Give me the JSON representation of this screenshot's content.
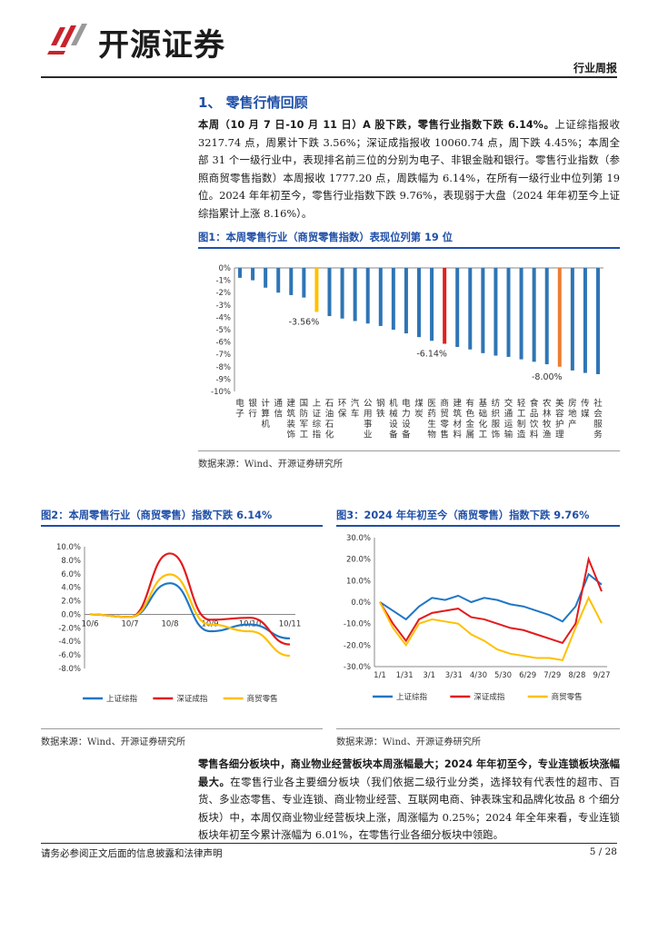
{
  "header": {
    "brand": "开源证券",
    "report_type": "行业周报"
  },
  "section_title": "1、 零售行情回顾",
  "para1": {
    "lead": "本周（10 月 7 日-10 月 11 日）A 股下跌，零售行业指数下跌 6.14%。",
    "rest": "上证综指报收 3217.74 点，周累计下跌 3.56%；深证成指报收 10060.74 点，周下跌 4.45%；本周全部 31 个一级行业中，表现排名前三位的分别为电子、非银金融和银行。零售行业指数（参照商贸零售指数）本周报收 1777.20 点，周跌幅为 6.14%，在所有一级行业中位列第 19 位。2024 年年初至今，零售行业指数下跌 9.76%，表现弱于大盘（2024 年年初至今上证综指累计上涨 8.16%）。"
  },
  "fig1": {
    "caption": "图1：本周零售行业（商贸零售指数）表现位列第 19 位",
    "source": "数据来源：Wind、开源证券研究所"
  },
  "fig2": {
    "caption": "图2：本周零售行业（商贸零售）指数下跌 6.14%",
    "source": "数据来源：Wind、开源证券研究所"
  },
  "fig3": {
    "caption": "图3：2024 年年初至今（商贸零售）指数下跌 9.76%",
    "source": "数据来源：Wind、开源证券研究所"
  },
  "para2": {
    "lead": "零售各细分板块中，商业物业经营板块本周涨幅最大；2024 年年初至今，专业连锁板块涨幅最大。",
    "rest": "在零售行业各主要细分板块（我们依据二级行业分类，选择较有代表性的超市、百货、多业态零售、专业连锁、商业物业经营、互联网电商、钟表珠宝和品牌化妆品 8 个细分板块）中，本周仅商业物业经营板块上涨，周涨幅为 0.25%；2024 年全年来看，专业连锁板块年初至今累计涨幅为 6.01%，在零售行业各细分板块中领跑。"
  },
  "footer": {
    "disclaimer": "请务必参阅正文后面的信息披露和法律声明",
    "page": "5 / 28"
  },
  "colors": {
    "accent": "#1f4fa8",
    "bar_default": "#2e75b6",
    "bar_highlight_yellow": "#ffc000",
    "bar_highlight_red": "#e02020",
    "bar_highlight_orange": "#ed7d31",
    "line_blue": "#1f77c4",
    "line_red": "#e31a1c",
    "line_yellow": "#ffc000"
  },
  "chart_data": [
    {
      "type": "bar",
      "categories": [
        "电子",
        "银行",
        "计算机",
        "通信",
        "建筑装饰",
        "国防军工",
        "上证综指",
        "石油石化",
        "环保",
        "汽车",
        "公用事业",
        "钢铁",
        "机械设备",
        "电力设备",
        "煤炭",
        "医药生物",
        "商贸零售",
        "建筑材料",
        "有色金属",
        "基础化工",
        "纺织服饰",
        "交通运输",
        "轻工制造",
        "食品饮料",
        "农林牧渔",
        "美容护理",
        "房地产",
        "传媒",
        "社会服务"
      ],
      "values": [
        -0.8,
        -1.0,
        -1.6,
        -2.0,
        -2.2,
        -2.4,
        -3.56,
        -3.9,
        -4.1,
        -4.3,
        -4.5,
        -4.7,
        -5.0,
        -5.3,
        -5.6,
        -5.9,
        -6.14,
        -6.4,
        -6.6,
        -6.9,
        -7.1,
        -7.2,
        -7.4,
        -7.6,
        -7.8,
        -8.0,
        -8.3,
        -8.5,
        -8.6
      ],
      "ylim": [
        -10,
        0
      ],
      "yticks": [
        "0%",
        "-1%",
        "-2%",
        "-3%",
        "-4%",
        "-5%",
        "-6%",
        "-7%",
        "-8%",
        "-9%",
        "-10%"
      ],
      "annotations": [
        "-3.56%",
        "-6.14%",
        "-8.00%"
      ],
      "grid": false
    },
    {
      "type": "line",
      "x": [
        "10/6",
        "10/7",
        "10/8",
        "10/9",
        "10/10",
        "10/11"
      ],
      "xticks": [
        "10/6",
        "10/7",
        "10/8",
        "10/9",
        "10/10",
        "10/11"
      ],
      "ylim": [
        -8,
        10
      ],
      "yticks": [
        "10.0%",
        "8.0%",
        "6.0%",
        "4.0%",
        "2.0%",
        "0.0%",
        "-2.0%",
        "-4.0%",
        "-6.0%",
        "-8.0%"
      ],
      "series": [
        {
          "name": "上证综指",
          "values": [
            0,
            -0.4,
            4.6,
            -2.5,
            -1.5,
            -3.56
          ]
        },
        {
          "name": "深证成指",
          "values": [
            0,
            -0.4,
            9.0,
            -0.8,
            -0.5,
            -4.45
          ]
        },
        {
          "name": "商贸零售",
          "values": [
            0,
            -0.4,
            5.9,
            -1.5,
            -2.5,
            -6.14
          ]
        }
      ]
    },
    {
      "type": "line",
      "xticks": [
        "1/1",
        "1/31",
        "3/1",
        "3/31",
        "4/30",
        "5/30",
        "6/29",
        "7/29",
        "8/28",
        "9/27"
      ],
      "ylim": [
        -30,
        30
      ],
      "yticks": [
        "30.0%",
        "20.0%",
        "10.0%",
        "0.0%",
        "-10.0%",
        "-20.0%",
        "-30.0%"
      ],
      "series": [
        {
          "name": "上证综指",
          "values": [
            0,
            -4,
            -8,
            -2,
            2,
            1,
            3,
            0,
            2,
            1,
            -1,
            -2,
            -4,
            -6,
            -9,
            -2,
            13,
            8.16
          ]
        },
        {
          "name": "深证成指",
          "values": [
            0,
            -10,
            -18,
            -8,
            -5,
            -4,
            -3,
            -7,
            -8,
            -10,
            -12,
            -13,
            -15,
            -17,
            -19,
            -10,
            20,
            5
          ]
        },
        {
          "name": "商贸零售",
          "values": [
            0,
            -12,
            -20,
            -10,
            -8,
            -9,
            -10,
            -15,
            -18,
            -22,
            -24,
            -25,
            -26,
            -26,
            -27,
            -12,
            2,
            -9.76
          ]
        }
      ]
    }
  ]
}
